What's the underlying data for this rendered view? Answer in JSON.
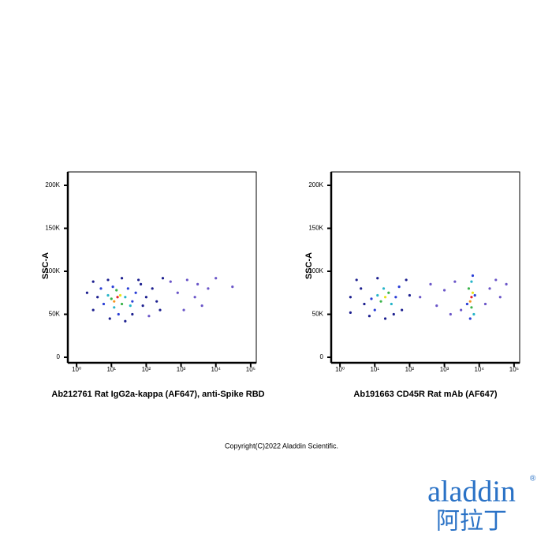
{
  "chart_data": [
    {
      "type": "scatter",
      "xlabel": "Ab212761 Rat IgG2a-kappa (AF647), anti-Spike RBD",
      "ylabel": "SSC-A",
      "xscale": "log",
      "xlim": [
        0.56,
        145000
      ],
      "ylim": [
        -6400,
        215600
      ],
      "xticks": [
        {
          "value": 1,
          "label": "10⁰"
        },
        {
          "value": 10,
          "label": "10¹"
        },
        {
          "value": 100,
          "label": "10²"
        },
        {
          "value": 1000,
          "label": "10³"
        },
        {
          "value": 10000,
          "label": "10⁴"
        },
        {
          "value": 100000,
          "label": "10⁵"
        }
      ],
      "yticks": [
        0,
        {
          "value": 50000,
          "label": "50K"
        },
        {
          "value": 100000,
          "label": "100K"
        },
        {
          "value": 150000,
          "label": "150K"
        },
        {
          "value": 200000,
          "label": "200K"
        }
      ],
      "x": [
        15,
        12,
        18,
        10,
        20,
        14,
        8,
        25,
        12,
        30,
        6,
        5,
        40,
        50,
        4,
        3,
        3,
        8,
        20,
        60,
        80,
        100,
        150,
        200,
        250,
        9,
        25,
        40,
        2,
        120,
        500,
        800,
        1500,
        2500,
        4000,
        6000,
        1200,
        3000,
        30000,
        10000,
        16,
        35,
        11,
        70,
        300
      ],
      "y": [
        70000,
        65000,
        72000,
        68000,
        62000,
        78000,
        72000,
        70000,
        58000,
        80000,
        62000,
        80000,
        65000,
        75000,
        70000,
        55000,
        88000,
        90000,
        92000,
        90000,
        60000,
        70000,
        80000,
        65000,
        55000,
        45000,
        42000,
        50000,
        75000,
        48000,
        88000,
        75000,
        90000,
        70000,
        60000,
        80000,
        55000,
        85000,
        82000,
        92000,
        50000,
        60000,
        82000,
        85000,
        92000
      ],
      "colors": [
        "#e8262a",
        "#f7931e",
        "#e8e51c",
        "#3cb44b",
        "#3cb44b",
        "#3cb44b",
        "#27b5c9",
        "#27b5c9",
        "#27b5c9",
        "#2b3fd6",
        "#2b3fd6",
        "#2b3fd6",
        "#2b3fd6",
        "#2b3fd6",
        "#1c1f8f",
        "#1c1f8f",
        "#1c1f8f",
        "#1c1f8f",
        "#1c1f8f",
        "#1c1f8f",
        "#1c1f8f",
        "#1c1f8f",
        "#1c1f8f",
        "#1c1f8f",
        "#1c1f8f",
        "#1c1f8f",
        "#1c1f8f",
        "#1c1f8f",
        "#1c1f8f",
        "#6a55c8",
        "#6a55c8",
        "#6a55c8",
        "#6a55c8",
        "#6a55c8",
        "#6a55c8",
        "#6a55c8",
        "#6a55c8",
        "#6a55c8",
        "#6a55c8",
        "#6a55c8",
        "#2b3fd6",
        "#27b5c9",
        "#2b3fd6",
        "#1c1f8f",
        "#1c1f8f"
      ]
    },
    {
      "type": "scatter",
      "xlabel": "Ab191663 CD45R Rat mAb (AF647)",
      "ylabel": "SSC-A",
      "xscale": "log",
      "xlim": [
        0.56,
        145000
      ],
      "ylim": [
        -6400,
        215600
      ],
      "xticks": [
        {
          "value": 1,
          "label": "10⁰"
        },
        {
          "value": 10,
          "label": "10¹"
        },
        {
          "value": 100,
          "label": "10²"
        },
        {
          "value": 1000,
          "label": "10³"
        },
        {
          "value": 10000,
          "label": "10⁴"
        },
        {
          "value": 100000,
          "label": "10⁵"
        }
      ],
      "yticks": [
        0,
        {
          "value": 50000,
          "label": "50K"
        },
        {
          "value": 100000,
          "label": "100K"
        },
        {
          "value": 150000,
          "label": "150K"
        },
        {
          "value": 200000,
          "label": "200K"
        }
      ],
      "x": [
        20,
        15,
        25,
        12,
        30,
        18,
        8,
        40,
        10,
        50,
        5,
        4,
        3,
        2,
        60,
        80,
        100,
        7,
        20,
        35,
        12,
        2,
        200,
        400,
        600,
        1000,
        1500,
        2000,
        6000,
        5500,
        6500,
        6000,
        5000,
        7000,
        6000,
        5500,
        6500,
        4500,
        7500,
        20000,
        30000,
        40000,
        15000,
        60000,
        3000
      ],
      "y": [
        70000,
        65000,
        75000,
        72000,
        62000,
        80000,
        68000,
        70000,
        55000,
        82000,
        62000,
        80000,
        90000,
        70000,
        55000,
        90000,
        72000,
        48000,
        45000,
        50000,
        92000,
        52000,
        70000,
        85000,
        60000,
        78000,
        50000,
        88000,
        70000,
        65000,
        75000,
        58000,
        80000,
        50000,
        88000,
        45000,
        95000,
        62000,
        72000,
        80000,
        90000,
        70000,
        62000,
        85000,
        55000
      ],
      "colors": [
        "#e8e51c",
        "#3cb44b",
        "#3cb44b",
        "#27b5c9",
        "#27b5c9",
        "#27b5c9",
        "#2b3fd6",
        "#2b3fd6",
        "#2b3fd6",
        "#2b3fd6",
        "#1c1f8f",
        "#1c1f8f",
        "#1c1f8f",
        "#1c1f8f",
        "#1c1f8f",
        "#1c1f8f",
        "#1c1f8f",
        "#1c1f8f",
        "#1c1f8f",
        "#1c1f8f",
        "#1c1f8f",
        "#1c1f8f",
        "#6a55c8",
        "#6a55c8",
        "#6a55c8",
        "#6a55c8",
        "#6a55c8",
        "#6a55c8",
        "#e8262a",
        "#f7931e",
        "#e8e51c",
        "#3cb44b",
        "#3cb44b",
        "#27b5c9",
        "#27b5c9",
        "#2b3fd6",
        "#2b3fd6",
        "#2b3fd6",
        "#2b3fd6",
        "#6a55c8",
        "#6a55c8",
        "#6a55c8",
        "#6a55c8",
        "#6a55c8",
        "#6a55c8"
      ]
    }
  ],
  "footer": {
    "copyright": "Copyright(C)2022 Aladdin Scientific.",
    "logo": "aladdin",
    "registered": "®",
    "logo_cn": "阿拉丁"
  }
}
